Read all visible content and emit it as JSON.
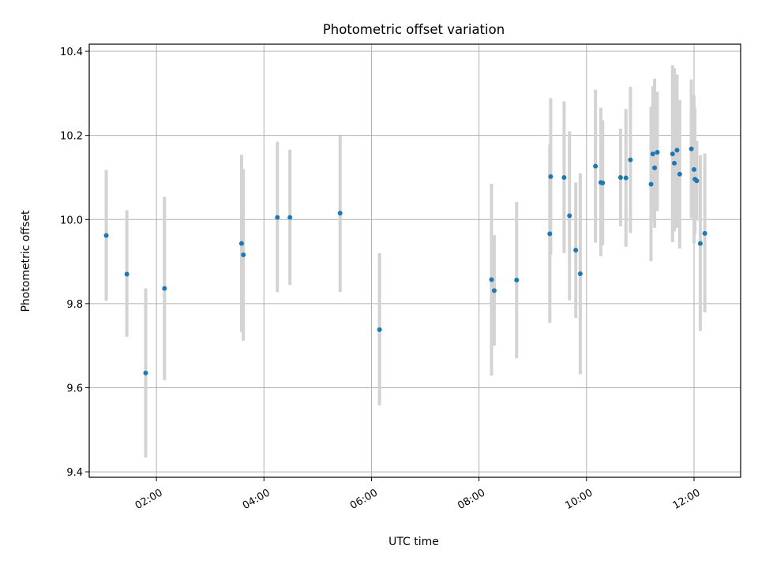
{
  "chart_data": {
    "type": "scatter",
    "title": "Photometric offset variation",
    "xlabel": "UTC time",
    "ylabel": "Photometric offset",
    "x_is_time": true,
    "xlim": [
      "00:45",
      "12:52"
    ],
    "ylim": [
      9.387,
      10.417
    ],
    "xticks": [
      "02:00",
      "04:00",
      "06:00",
      "08:00",
      "10:00",
      "12:00"
    ],
    "yticks": [
      9.4,
      9.6,
      9.8,
      10.0,
      10.2,
      10.4
    ],
    "ytick_labels": [
      "9.4",
      "9.6",
      "9.8",
      "10.0",
      "10.2",
      "10.4"
    ],
    "grid": true,
    "marker_color": "#1f77b4",
    "errorbar_color": "#d3d3d3",
    "points": [
      {
        "t": "01:04",
        "y": 9.962,
        "lo": 9.807,
        "hi": 10.118
      },
      {
        "t": "01:27",
        "y": 9.87,
        "lo": 9.721,
        "hi": 10.022
      },
      {
        "t": "01:48",
        "y": 9.635,
        "lo": 9.434,
        "hi": 9.836
      },
      {
        "t": "02:09",
        "y": 9.836,
        "lo": 9.618,
        "hi": 10.054
      },
      {
        "t": "03:35",
        "y": 9.943,
        "lo": 9.733,
        "hi": 10.154
      },
      {
        "t": "03:37",
        "y": 9.916,
        "lo": 9.712,
        "hi": 10.12
      },
      {
        "t": "04:15",
        "y": 10.005,
        "lo": 9.827,
        "hi": 10.185
      },
      {
        "t": "04:29",
        "y": 10.005,
        "lo": 9.844,
        "hi": 10.166
      },
      {
        "t": "05:25",
        "y": 10.015,
        "lo": 9.828,
        "hi": 10.199
      },
      {
        "t": "06:09",
        "y": 9.738,
        "lo": 9.558,
        "hi": 9.92
      },
      {
        "t": "08:14",
        "y": 9.857,
        "lo": 9.629,
        "hi": 10.085
      },
      {
        "t": "08:17",
        "y": 9.831,
        "lo": 9.7,
        "hi": 9.963
      },
      {
        "t": "08:42",
        "y": 9.856,
        "lo": 9.67,
        "hi": 10.042
      },
      {
        "t": "09:19",
        "y": 9.966,
        "lo": 9.754,
        "hi": 10.178
      },
      {
        "t": "09:20",
        "y": 10.102,
        "lo": 9.916,
        "hi": 10.289
      },
      {
        "t": "09:35",
        "y": 10.1,
        "lo": 9.92,
        "hi": 10.281
      },
      {
        "t": "09:41",
        "y": 10.009,
        "lo": 9.808,
        "hi": 10.21
      },
      {
        "t": "09:48",
        "y": 9.927,
        "lo": 9.766,
        "hi": 10.088
      },
      {
        "t": "09:53",
        "y": 9.871,
        "lo": 9.632,
        "hi": 10.11
      },
      {
        "t": "10:10",
        "y": 10.127,
        "lo": 9.945,
        "hi": 10.309
      },
      {
        "t": "10:16",
        "y": 10.088,
        "lo": 9.913,
        "hi": 10.266
      },
      {
        "t": "10:18",
        "y": 10.087,
        "lo": 9.939,
        "hi": 10.236
      },
      {
        "t": "10:38",
        "y": 10.1,
        "lo": 9.984,
        "hi": 10.216
      },
      {
        "t": "10:44",
        "y": 10.099,
        "lo": 9.935,
        "hi": 10.263
      },
      {
        "t": "10:49",
        "y": 10.142,
        "lo": 9.968,
        "hi": 10.316
      },
      {
        "t": "11:12",
        "y": 10.084,
        "lo": 9.901,
        "hi": 10.268
      },
      {
        "t": "11:14",
        "y": 10.156,
        "lo": 9.995,
        "hi": 10.317
      },
      {
        "t": "11:16",
        "y": 10.123,
        "lo": 9.98,
        "hi": 10.335
      },
      {
        "t": "11:19",
        "y": 10.16,
        "lo": 10.02,
        "hi": 10.304
      },
      {
        "t": "11:36",
        "y": 10.156,
        "lo": 9.946,
        "hi": 10.367
      },
      {
        "t": "11:38",
        "y": 10.134,
        "lo": 9.972,
        "hi": 10.36
      },
      {
        "t": "11:41",
        "y": 10.165,
        "lo": 9.98,
        "hi": 10.345
      },
      {
        "t": "11:44",
        "y": 10.108,
        "lo": 9.931,
        "hi": 10.284
      },
      {
        "t": "11:57",
        "y": 10.168,
        "lo": 10.003,
        "hi": 10.333
      },
      {
        "t": "12:00",
        "y": 10.119,
        "lo": 9.943,
        "hi": 10.295
      },
      {
        "t": "12:01",
        "y": 10.096,
        "lo": 9.966,
        "hi": 10.267
      },
      {
        "t": "12:03",
        "y": 10.092,
        "lo": 9.998,
        "hi": 10.187
      },
      {
        "t": "12:07",
        "y": 9.943,
        "lo": 9.735,
        "hi": 10.153
      },
      {
        "t": "12:12",
        "y": 9.967,
        "lo": 9.779,
        "hi": 10.157
      }
    ]
  }
}
